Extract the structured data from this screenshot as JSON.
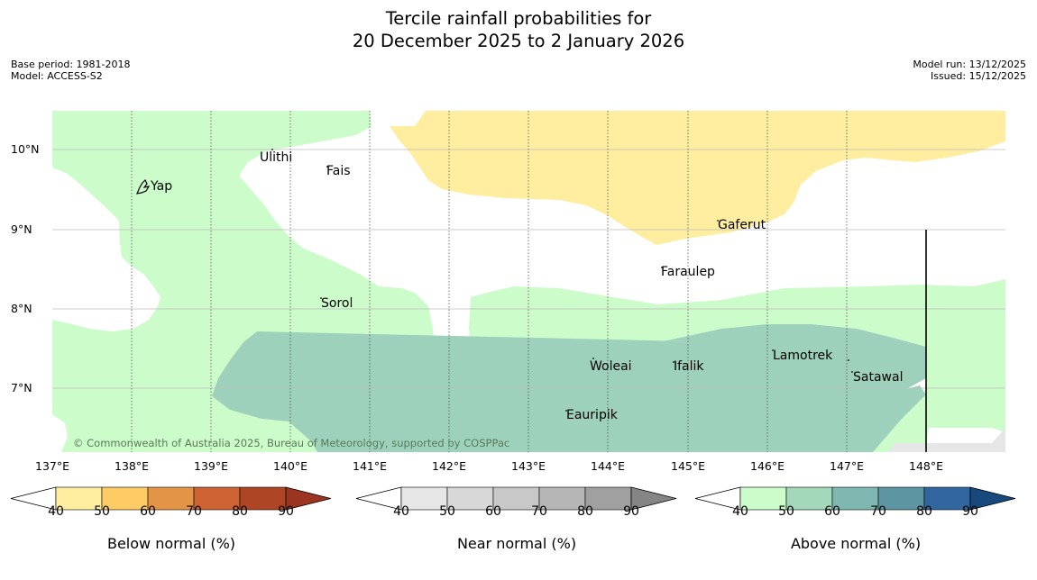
{
  "title": {
    "line1": "Tercile rainfall probabilities for",
    "line2": "20 December 2025 to 2 January 2026"
  },
  "meta_left": {
    "base_period": "Base period: 1981-2018",
    "model": "Model: ACCESS-S2"
  },
  "meta_right": {
    "model_run": "Model run: 13/12/2025",
    "issued": "Issued: 15/12/2025"
  },
  "map": {
    "lat_labels": [
      "10°N",
      "9°N",
      "8°N",
      "7°N"
    ],
    "lon_labels": [
      "137°E",
      "138°E",
      "139°E",
      "140°E",
      "141°E",
      "142°E",
      "143°E",
      "144°E",
      "145°E",
      "146°E",
      "147°E",
      "148°E"
    ],
    "places": [
      "Yap",
      "Ulithi",
      "Fais",
      "Gaferut",
      "Faraulep",
      "Sorol",
      "Woleai",
      "Ifalik",
      "Lamotrek",
      "Satawal",
      "Eauripik"
    ],
    "copyright": "© Commonwealth of Australia 2025, Bureau of Meteorology, supported by COSPPac",
    "colors": {
      "above_50": "#ccfcca",
      "above_60": "#9dd1bb",
      "below_50": "#ffeda0",
      "near_50": "#e6e6e6",
      "land": "#000000"
    }
  },
  "legends": [
    {
      "title": "Below normal (%)",
      "ticks": [
        "40",
        "50",
        "60",
        "70",
        "80",
        "90"
      ],
      "colors": [
        "#ffeda0",
        "#fecb65",
        "#e39446",
        "#cd6233",
        "#ae4626",
        "#9c3520"
      ]
    },
    {
      "title": "Near normal (%)",
      "ticks": [
        "40",
        "50",
        "60",
        "70",
        "80",
        "90"
      ],
      "colors": [
        "#e6e6e6",
        "#d8d8d8",
        "#c8c8c8",
        "#b6b6b6",
        "#a0a0a0",
        "#858585"
      ]
    },
    {
      "title": "Above normal (%)",
      "ticks": [
        "40",
        "50",
        "60",
        "70",
        "80",
        "90"
      ],
      "colors": [
        "#ccfcca",
        "#a4d8bb",
        "#7fb8b0",
        "#5e95a3",
        "#31669e",
        "#17497c"
      ]
    }
  ]
}
